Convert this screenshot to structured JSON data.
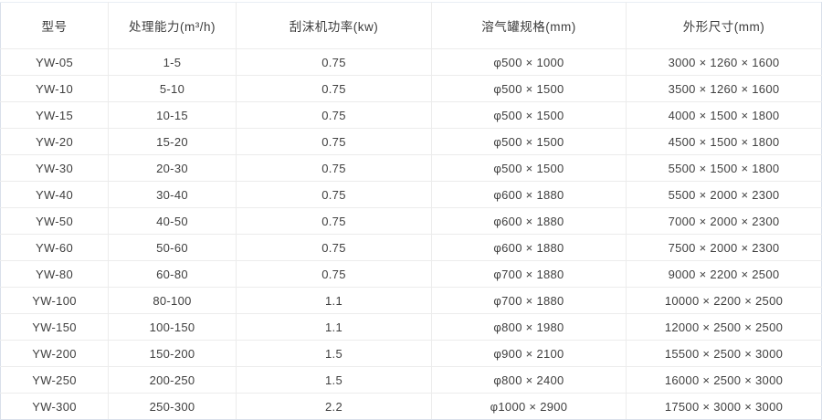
{
  "table": {
    "columns": [
      {
        "key": "model",
        "label": "型号"
      },
      {
        "key": "capacity",
        "label": "处理能力(m³/h)"
      },
      {
        "key": "scraper-power",
        "label": "刮沫机功率(kw)"
      },
      {
        "key": "tank-spec",
        "label": "溶气罐规格(mm)"
      },
      {
        "key": "dimensions",
        "label": "外形尺寸(mm)"
      }
    ],
    "rows": [
      [
        "YW-05",
        "1-5",
        "0.75",
        "φ500 × 1000",
        "3000 × 1260 × 1600"
      ],
      [
        "YW-10",
        "5-10",
        "0.75",
        "φ500 × 1500",
        "3500 × 1260 × 1600"
      ],
      [
        "YW-15",
        "10-15",
        "0.75",
        "φ500 × 1500",
        "4000 × 1500 × 1800"
      ],
      [
        "YW-20",
        "15-20",
        "0.75",
        "φ500 × 1500",
        "4500 × 1500 × 1800"
      ],
      [
        "YW-30",
        "20-30",
        "0.75",
        "φ500 × 1500",
        "5500 × 1500 × 1800"
      ],
      [
        "YW-40",
        "30-40",
        "0.75",
        "φ600 × 1880",
        "5500 × 2000 × 2300"
      ],
      [
        "YW-50",
        "40-50",
        "0.75",
        "φ600 × 1880",
        "7000 × 2000 × 2300"
      ],
      [
        "YW-60",
        "50-60",
        "0.75",
        "φ600 × 1880",
        "7500 × 2000 × 2300"
      ],
      [
        "YW-80",
        "60-80",
        "0.75",
        "φ700 × 1880",
        "9000 × 2200 × 2500"
      ],
      [
        "YW-100",
        "80-100",
        "1.1",
        "φ700 × 1880",
        "10000 × 2200 × 2500"
      ],
      [
        "YW-150",
        "100-150",
        "1.1",
        "φ800 × 1980",
        "12000 × 2500 × 2500"
      ],
      [
        "YW-200",
        "150-200",
        "1.5",
        "φ900 × 2100",
        "15500 × 2500 × 3000"
      ],
      [
        "YW-250",
        "200-250",
        "1.5",
        "φ800 × 2400",
        "16000 × 2500 × 3000"
      ],
      [
        "YW-300",
        "250-300",
        "2.2",
        "φ1000 × 2900",
        "17500 × 3000 × 3000"
      ]
    ]
  },
  "colors": {
    "outer_border": "#d9e0ea",
    "grid_line": "#ececec",
    "text": "#404040",
    "background": "#ffffff"
  }
}
